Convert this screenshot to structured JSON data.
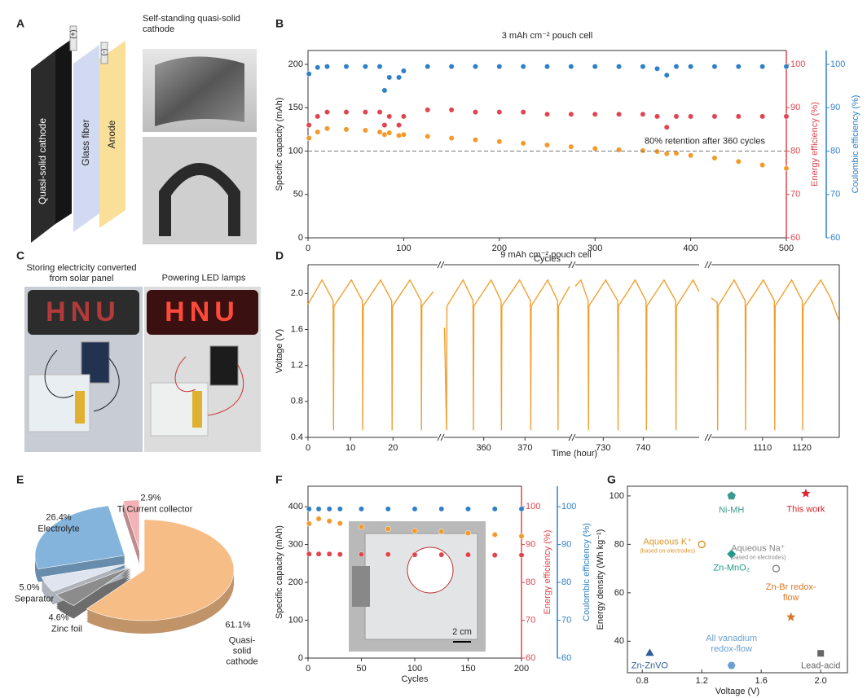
{
  "panels": {
    "labels": [
      "A",
      "B",
      "C",
      "D",
      "E",
      "F",
      "G"
    ]
  },
  "diagram_a": {
    "layers": [
      "Quasi-solid cathode",
      "Glass fiber",
      "Anode"
    ],
    "terminals": [
      "(+)",
      "(-)"
    ],
    "photo_caption": "Self-standing quasi-solid cathode"
  },
  "photos_c": {
    "captions": [
      "Storing electricity converted from solar panel",
      "Powering LED lamps"
    ],
    "sign": "HNU"
  },
  "chart_data": [
    {
      "type": "scatter",
      "title": "3 mAh cm⁻² pouch cell",
      "xlabel": "Cycles",
      "ylabel": "Specific capacity (mAh)",
      "y2label": "Energy efficiency (%)",
      "y3label": "Coulombic efficiency (%)",
      "x": [
        1,
        10,
        20,
        40,
        60,
        75,
        80,
        85,
        95,
        100,
        125,
        150,
        175,
        200,
        225,
        250,
        275,
        300,
        325,
        350,
        365,
        375,
        385,
        400,
        425,
        450,
        475,
        500
      ],
      "xlim": [
        0,
        500
      ],
      "xticks": [
        0,
        100,
        200,
        300,
        400,
        500
      ],
      "ylim": [
        0,
        216
      ],
      "yticks": [
        0,
        50,
        100,
        150,
        200
      ],
      "y2lim": [
        60,
        103.2
      ],
      "y2ticks": [
        60,
        70,
        80,
        90,
        100
      ],
      "y3lim": [
        60,
        103.2
      ],
      "y3ticks": [
        60,
        70,
        80,
        90,
        100
      ],
      "series": [
        {
          "color": "#f39a2b",
          "axis": "y",
          "values": [
            115,
            122,
            126,
            125,
            124,
            122,
            119,
            121,
            118,
            119,
            117,
            115,
            113,
            111,
            109,
            107,
            105,
            103,
            101.5,
            100.5,
            99.5,
            97,
            97.5,
            95,
            92,
            88,
            84,
            80
          ]
        },
        {
          "color": "#e0454f",
          "axis": "y2",
          "values": [
            86,
            88,
            89,
            89,
            89,
            89,
            86,
            88,
            86,
            88,
            89.5,
            89.5,
            89,
            89,
            89,
            88.5,
            88.5,
            88.5,
            88.5,
            88.5,
            88,
            85.5,
            88,
            88,
            88,
            88,
            88,
            88
          ]
        },
        {
          "color": "#2f80c8",
          "axis": "y3",
          "values": [
            97.8,
            99.3,
            99.5,
            99.5,
            99.5,
            99.5,
            94,
            97,
            97,
            98.5,
            99.5,
            99.5,
            99.5,
            99.5,
            99.5,
            99.5,
            99.5,
            99.5,
            99.5,
            99.5,
            99,
            97.5,
            99.5,
            99.5,
            99.5,
            99.5,
            99.5,
            99.5
          ]
        }
      ],
      "annotation": {
        "text": "80% retention after 360 cycles",
        "y": 100
      }
    },
    {
      "type": "line",
      "title": "9 mAh cm⁻² pouch cell",
      "xlabel": "Time (hour)",
      "ylabel": "Voltage (V)",
      "color": "#f0a030",
      "ylim": [
        0.4,
        2.32
      ],
      "yticks": [
        0.4,
        0.8,
        1.2,
        1.6,
        {
          "value": 2,
          "label": "2.0"
        }
      ],
      "segments": [
        {
          "xlim": [
            0,
            30.5
          ],
          "xticks": [
            0,
            10,
            20
          ],
          "x": [
            0,
            3.3,
            5.9,
            6,
            6.1,
            10.2,
            12.8,
            12.9,
            13,
            17.1,
            19.7,
            19.8,
            19.9,
            24,
            26.6,
            26.7,
            26.8,
            29.5
          ],
          "values": [
            1.88,
            2.15,
            1.92,
            0.48,
            1.86,
            2.15,
            1.92,
            0.48,
            1.86,
            2.15,
            1.92,
            0.48,
            1.86,
            2.15,
            1.92,
            0.48,
            1.86,
            2.02
          ]
        },
        {
          "xlim": [
            350.4,
            381
          ],
          "xticks": [
            360,
            370
          ],
          "x": [
            350.5,
            351,
            351.1,
            355,
            357.4,
            357.5,
            357.6,
            361.8,
            364.2,
            364.3,
            364.4,
            368.7,
            371.3,
            371.4,
            371.5,
            375.5,
            377.9,
            378,
            378.1,
            380.8
          ],
          "values": [
            1.62,
            0.48,
            1.86,
            2.15,
            1.92,
            0.48,
            1.86,
            2.15,
            1.92,
            0.48,
            1.86,
            2.15,
            1.92,
            0.48,
            1.86,
            2.15,
            1.92,
            0.48,
            1.86,
            2.08
          ]
        },
        {
          "xlim": [
            723,
            754
          ],
          "xticks": [
            730,
            740
          ],
          "x": [
            723,
            724.4,
            726.2,
            726.3,
            726.4,
            730.6,
            733.6,
            733.7,
            733.8,
            738,
            740.7,
            740.8,
            740.9,
            745.2,
            748.1,
            748.2,
            748.3,
            752.5,
            754
          ],
          "values": [
            2.08,
            2.15,
            1.92,
            0.48,
            1.86,
            2.15,
            1.92,
            0.48,
            1.86,
            2.15,
            1.92,
            0.48,
            1.86,
            2.15,
            1.92,
            0.48,
            1.86,
            2.15,
            2.02
          ]
        },
        {
          "xlim": [
            1097,
            1129.5
          ],
          "xticks": [
            1110,
            1120
          ],
          "x": [
            1097,
            1098.5,
            1098.6,
            1098.7,
            1102.8,
            1105.6,
            1105.7,
            1105.8,
            1110.2,
            1113,
            1113.1,
            1113.2,
            1117.4,
            1120.1,
            1120.2,
            1120.3,
            1124.8,
            1127.3,
            1129.4
          ],
          "values": [
            1.95,
            1.9,
            0.48,
            1.86,
            2.15,
            1.92,
            0.48,
            1.86,
            2.15,
            1.92,
            0.48,
            1.86,
            2.15,
            1.92,
            0.48,
            1.86,
            2.15,
            1.95,
            1.7
          ]
        }
      ]
    },
    {
      "type": "pie",
      "categories": [
        "Quasi-solid cathode",
        "Zinc foil",
        "Separator",
        "Electrolyte",
        "Ti Current collector"
      ],
      "values": [
        61.1,
        4.6,
        5,
        26.4,
        2.9
      ],
      "value_labels": [
        "61.1%",
        "4.6%",
        "5.0%",
        "26.4%",
        "2.9%"
      ],
      "colors": [
        "#f7bd86",
        "#8c8c8c",
        "#dfe4ee",
        "#84b4dc",
        "#f3b3b6"
      ]
    },
    {
      "type": "scatter",
      "xlabel": "Cycles",
      "ylabel": "Specific capacity (mAh)",
      "y2label": "Energy efficiency (%)",
      "y3label": "Coulombic efficiency (%)",
      "x": [
        1,
        10,
        20,
        30,
        50,
        75,
        100,
        125,
        150,
        175,
        200
      ],
      "xlim": [
        0,
        200
      ],
      "xticks": [
        0,
        50,
        100,
        150,
        200
      ],
      "ylim": [
        0,
        454
      ],
      "yticks": [
        0,
        100,
        200,
        300,
        400
      ],
      "y2lim": [
        60,
        105.4
      ],
      "y2ticks": [
        60,
        70,
        80,
        90,
        100
      ],
      "y3lim": [
        60,
        105.4
      ],
      "y3ticks": [
        60,
        70,
        80,
        90,
        100
      ],
      "series": [
        {
          "color": "#f39a2b",
          "axis": "y",
          "values": [
            355,
            368,
            362,
            356,
            347,
            341,
            336,
            334,
            330,
            326,
            322
          ]
        },
        {
          "color": "#e0454f",
          "axis": "y2",
          "values": [
            87.5,
            87.5,
            87.5,
            87.4,
            87.4,
            87.4,
            87.3,
            87.3,
            87.3,
            87.2,
            87.2
          ]
        },
        {
          "color": "#2f80c8",
          "axis": "y3",
          "values": [
            99.4,
            99.4,
            99.4,
            99.4,
            99.4,
            99.4,
            99.4,
            99.4,
            99.4,
            99.4,
            99.4
          ]
        }
      ],
      "inset_label": "2 cm"
    },
    {
      "type": "scatter",
      "xlabel": "Voltage (V)",
      "ylabel": "Energy density (Wh kg⁻¹)",
      "xlim": [
        0.7,
        2.18
      ],
      "xticks": [
        0.8,
        1.2,
        1.6,
        {
          "value": 2,
          "label": "2.0"
        }
      ],
      "ylim": [
        27,
        104
      ],
      "yticks": [
        40,
        60,
        80,
        100
      ],
      "categories": [
        "This work",
        "Ni-MH",
        "Aqueous K⁺",
        "Zn-MnO₂",
        "Aqueous Na⁺",
        "Zn-Br redox-flow",
        "Zn-ZnVO",
        "All vanadium redox-flow",
        "Lead-acid"
      ],
      "x": [
        1.9,
        1.4,
        1.2,
        1.4,
        1.7,
        1.8,
        0.85,
        1.4,
        2
      ],
      "values": [
        101,
        100,
        80,
        76,
        70,
        50,
        35,
        30,
        35
      ],
      "colors": [
        "#d7262e",
        "#3a9a8f",
        "#d9962a",
        "#1f9a8a",
        "#888888",
        "#d9782a",
        "#2f5f9a",
        "#6a9fd0",
        "#666666"
      ],
      "markers": [
        "star",
        "pentagon",
        "circle-open",
        "diamond",
        "circle-open",
        "star",
        "triangle",
        "hexagon",
        "square"
      ],
      "sublabels": [
        null,
        null,
        "(based on electrodes)",
        null,
        "(based on electrodes)",
        null,
        null,
        null,
        null
      ]
    }
  ]
}
